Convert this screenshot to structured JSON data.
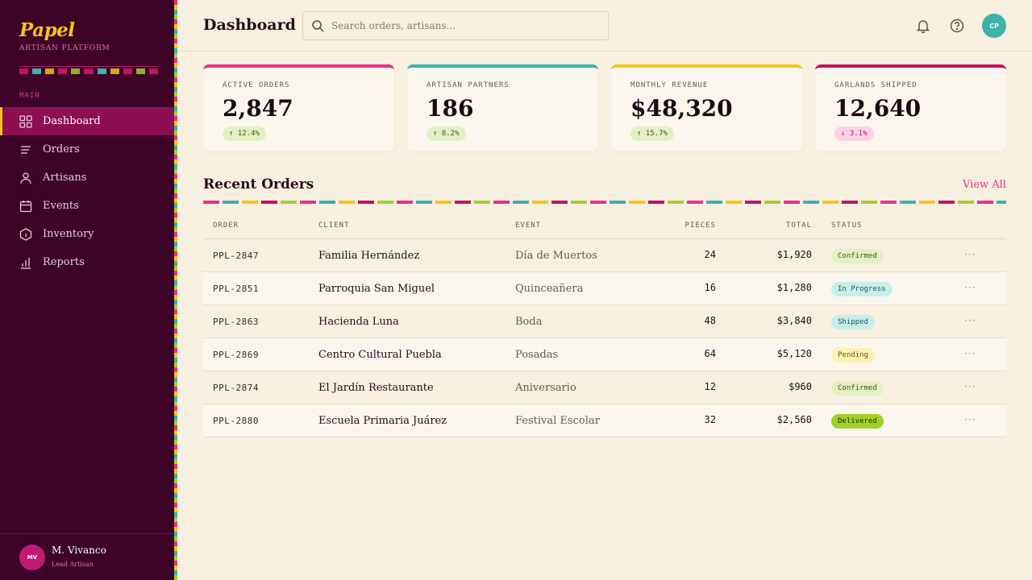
{
  "brand": {
    "name": "Papel",
    "subtitle": "ARTISAN PLATFORM"
  },
  "sidebar": {
    "section": "MAIN",
    "items": [
      {
        "label": "Dashboard",
        "icon": "grid-icon",
        "active": true
      },
      {
        "label": "Orders",
        "icon": "list-icon"
      },
      {
        "label": "Artisans",
        "icon": "person-icon"
      },
      {
        "label": "Events",
        "icon": "calendar-icon"
      },
      {
        "label": "Inventory",
        "icon": "box-icon"
      },
      {
        "label": "Reports",
        "icon": "bar-chart-icon"
      }
    ],
    "user": {
      "initials": "MV",
      "name": "M. Vivanco",
      "role": "Lead Artisan"
    }
  },
  "header": {
    "title": "Dashboard",
    "search_placeholder": "Search orders, artisans...",
    "avatar_initials": "CP"
  },
  "colors": {
    "pink": "#e8328a",
    "teal": "#3bb3a7",
    "yellow": "#f5c518",
    "magenta": "#c2135f",
    "lime": "#a6d12a",
    "sidebar": "#3d0428"
  },
  "stats": [
    {
      "label": "ACTIVE ORDERS",
      "value": "2,847",
      "delta": "↑ 12.4%",
      "trend": "up",
      "color": "#e8328a"
    },
    {
      "label": "ARTISAN PARTNERS",
      "value": "186",
      "delta": "↑ 8.2%",
      "trend": "up",
      "color": "#3bb3a7"
    },
    {
      "label": "MONTHLY REVENUE",
      "value": "$48,320",
      "delta": "↑ 15.7%",
      "trend": "up",
      "color": "#f5c518"
    },
    {
      "label": "GARLANDS SHIPPED",
      "value": "12,640",
      "delta": "↓ 3.1%",
      "trend": "down",
      "color": "#c2135f"
    }
  ],
  "orders": {
    "title": "Recent Orders",
    "view_all": "View All",
    "columns": {
      "order": "ORDER",
      "client": "CLIENT",
      "event": "EVENT",
      "pieces": "PIECES",
      "total": "TOTAL",
      "status": "STATUS"
    },
    "rows": [
      {
        "order": "PPL-2847",
        "client": "Familia Hernández",
        "event": "Día de Muertos",
        "pieces": "24",
        "total": "$1,920",
        "status": "Confirmed",
        "status_kind": "confirmed"
      },
      {
        "order": "PPL-2851",
        "client": "Parroquia San Miguel",
        "event": "Quinceañera",
        "pieces": "16",
        "total": "$1,280",
        "status": "In Progress",
        "status_kind": "progress"
      },
      {
        "order": "PPL-2863",
        "client": "Hacienda Luna",
        "event": "Boda",
        "pieces": "48",
        "total": "$3,840",
        "status": "Shipped",
        "status_kind": "shipped"
      },
      {
        "order": "PPL-2869",
        "client": "Centro Cultural Puebla",
        "event": "Posadas",
        "pieces": "64",
        "total": "$5,120",
        "status": "Pending",
        "status_kind": "pending"
      },
      {
        "order": "PPL-2874",
        "client": "El Jardín Restaurante",
        "event": "Aniversario",
        "pieces": "12",
        "total": "$960",
        "status": "Confirmed",
        "status_kind": "confirmed"
      },
      {
        "order": "PPL-2880",
        "client": "Escuela Primaria Juárez",
        "event": "Festival Escolar",
        "pieces": "32",
        "total": "$2,560",
        "status": "Delivered",
        "status_kind": "delivered"
      }
    ],
    "row_action": "···"
  }
}
